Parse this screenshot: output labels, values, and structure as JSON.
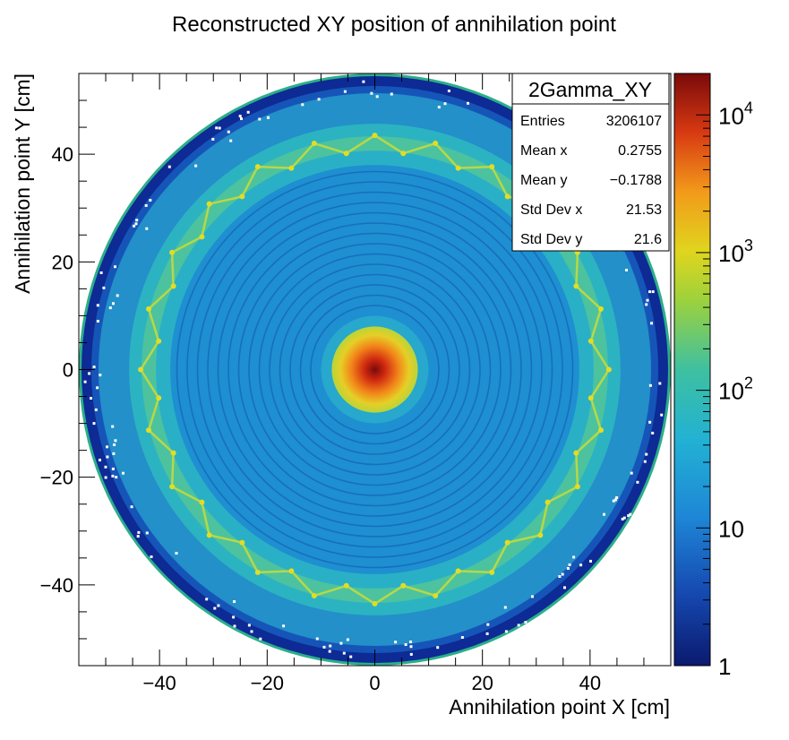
{
  "chart_data": {
    "type": "heatmap",
    "title": "Reconstructed XY position of annihilation point",
    "xlabel": "Annihilation point X [cm]",
    "ylabel": "Annihilation point Y [cm]",
    "xlim": [
      -55,
      55
    ],
    "ylim": [
      -55,
      55
    ],
    "x_ticks": [
      -40,
      -20,
      0,
      20,
      40
    ],
    "y_ticks": [
      -40,
      -20,
      0,
      20,
      40
    ],
    "x_tick_labels": [
      "−40",
      "−20",
      "0",
      "20",
      "40"
    ],
    "y_tick_labels": [
      "−40",
      "−20",
      "0",
      "20",
      "40"
    ],
    "colorbar": {
      "scale": "log",
      "range": [
        1,
        20000
      ],
      "ticks": [
        1,
        10,
        100,
        1000,
        10000
      ],
      "tick_labels": [
        {
          "base": "1",
          "exp": ""
        },
        {
          "base": "10",
          "exp": ""
        },
        {
          "base": "10",
          "exp": "2"
        },
        {
          "base": "10",
          "exp": "3"
        },
        {
          "base": "10",
          "exp": "4"
        }
      ]
    },
    "stats_box": {
      "name": "2Gamma_XY",
      "rows": [
        {
          "label": "Entries",
          "value": "3206107"
        },
        {
          "label": "Mean x",
          "value": "0.2755"
        },
        {
          "label": "Mean y",
          "value": "−0.1788"
        },
        {
          "label": "Std Dev x",
          "value": "21.53"
        },
        {
          "label": "Std Dev y",
          "value": "21.6"
        }
      ]
    },
    "distribution": {
      "detector_radius": 55,
      "central_peak": {
        "x": 0,
        "y": 0,
        "radius": 8,
        "peak_counts": 20000
      },
      "bright_ring_radius": 42,
      "bright_ring_points": 48,
      "edge_rim_radius": 55
    },
    "colors": {
      "low": "#0b1f87",
      "mid_low": "#1e7fd2",
      "mid": "#2bbcc9",
      "mid_high": "#b9d531",
      "high": "#f09b1c",
      "max": "#7a0a0a"
    }
  }
}
